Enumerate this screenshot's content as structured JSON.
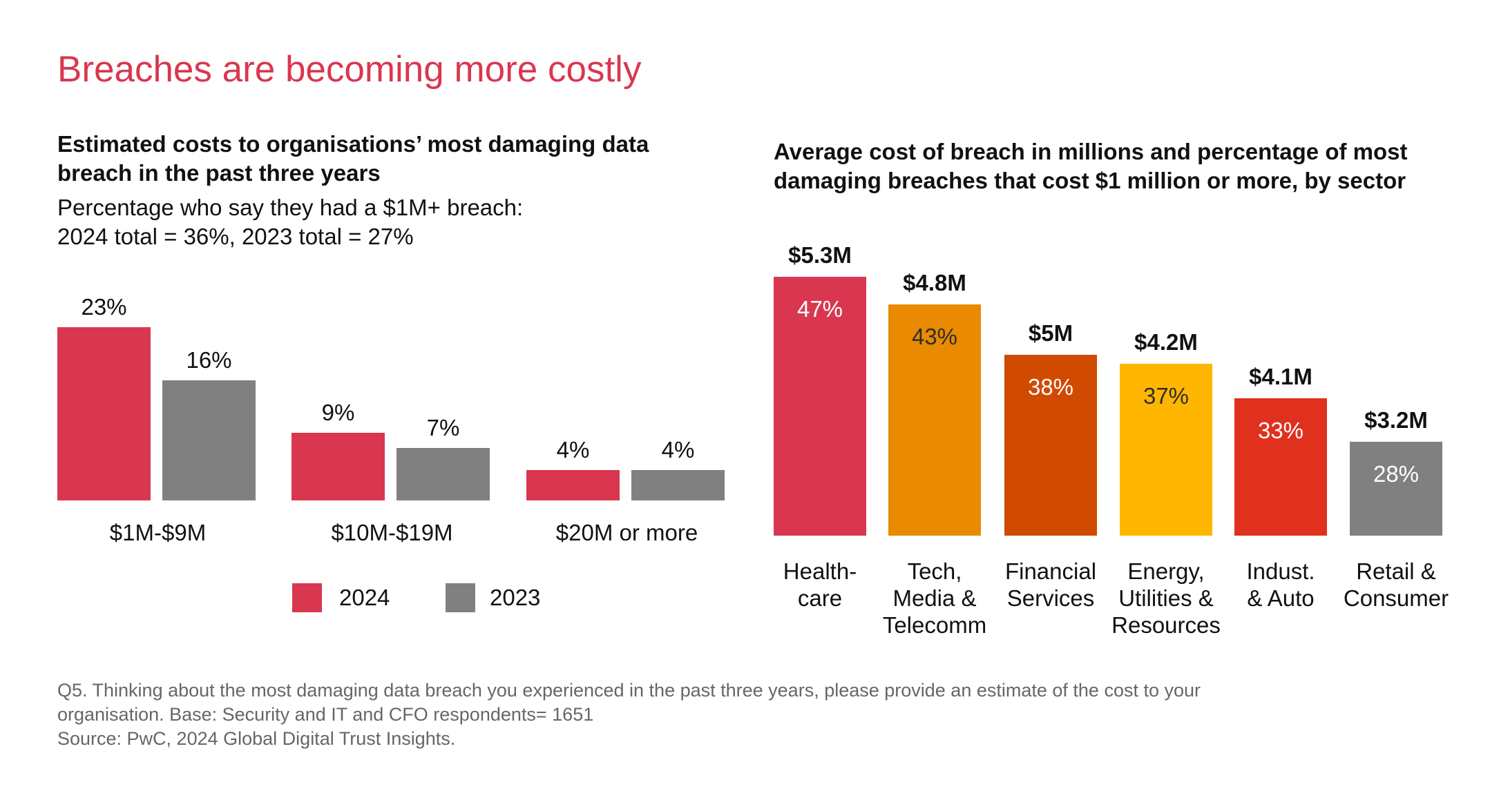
{
  "title": "Breaches are becoming more costly",
  "colors": {
    "c2024": "#d9374f",
    "c2023": "#808080"
  },
  "chart_data": [
    {
      "type": "bar",
      "title": "Estimated costs to organisations’ most damaging data breach in the past three years",
      "title_lines": [
        "Estimated costs to organisations’ most damaging data",
        "breach in the past three years"
      ],
      "note_lines": [
        "Percentage who say they had a $1M+ breach:",
        "2024 total = 36%, 2023 total = 27%"
      ],
      "categories": [
        "$1M-$9M",
        "$10M-$19M",
        "$20M or more"
      ],
      "series": [
        {
          "name": "2024",
          "values": [
            23,
            9,
            4
          ],
          "labels": [
            "23%",
            "9%",
            "4%"
          ],
          "color": "#d9374f"
        },
        {
          "name": "2023",
          "values": [
            16,
            7,
            4
          ],
          "labels": [
            "16%",
            "7%",
            "4%"
          ],
          "color": "#808080"
        }
      ],
      "legend": "bottom",
      "ylim": [
        0,
        25
      ],
      "grid": false
    },
    {
      "type": "bar",
      "title": "Average cost of breach in millions and percentage of most damaging breaches that cost $1 million or more, by sector",
      "title_lines": [
        "Average cost of breach in millions and percentage of most",
        "damaging breaches that cost $1 million or more, by sector"
      ],
      "categories": [
        "Health-\ncare",
        "Tech,\nMedia &\nTelecomm",
        "Financial\nServices",
        "Energy,\nUtilities &\nResources",
        "Indust.\n& Auto",
        "Retail &\nConsumer"
      ],
      "values": [
        47,
        43,
        38,
        37,
        33,
        28
      ],
      "value_labels": [
        "47%",
        "43%",
        "38%",
        "37%",
        "33%",
        "28%"
      ],
      "avg_cost": [
        "$5.3M",
        "$4.8M",
        "$5M",
        "$4.2M",
        "$4.1M",
        "$3.2M"
      ],
      "colors": [
        "#d9374f",
        "#e98a00",
        "#d04a02",
        "#ffb600",
        "#e0301e",
        "#808080"
      ],
      "label_colors": [
        "#ffffff",
        "#2d2d2d",
        "#ffffff",
        "#2d2d2d",
        "#ffffff",
        "#ffffff"
      ],
      "grid": false
    }
  ],
  "footnote": [
    "Q5. Thinking about the most damaging data breach you experienced in the past three years, please provide an estimate of the cost to your",
    "organisation. Base: Security and IT and CFO respondents= 1651",
    "Source: PwC, 2024 Global Digital Trust Insights."
  ]
}
